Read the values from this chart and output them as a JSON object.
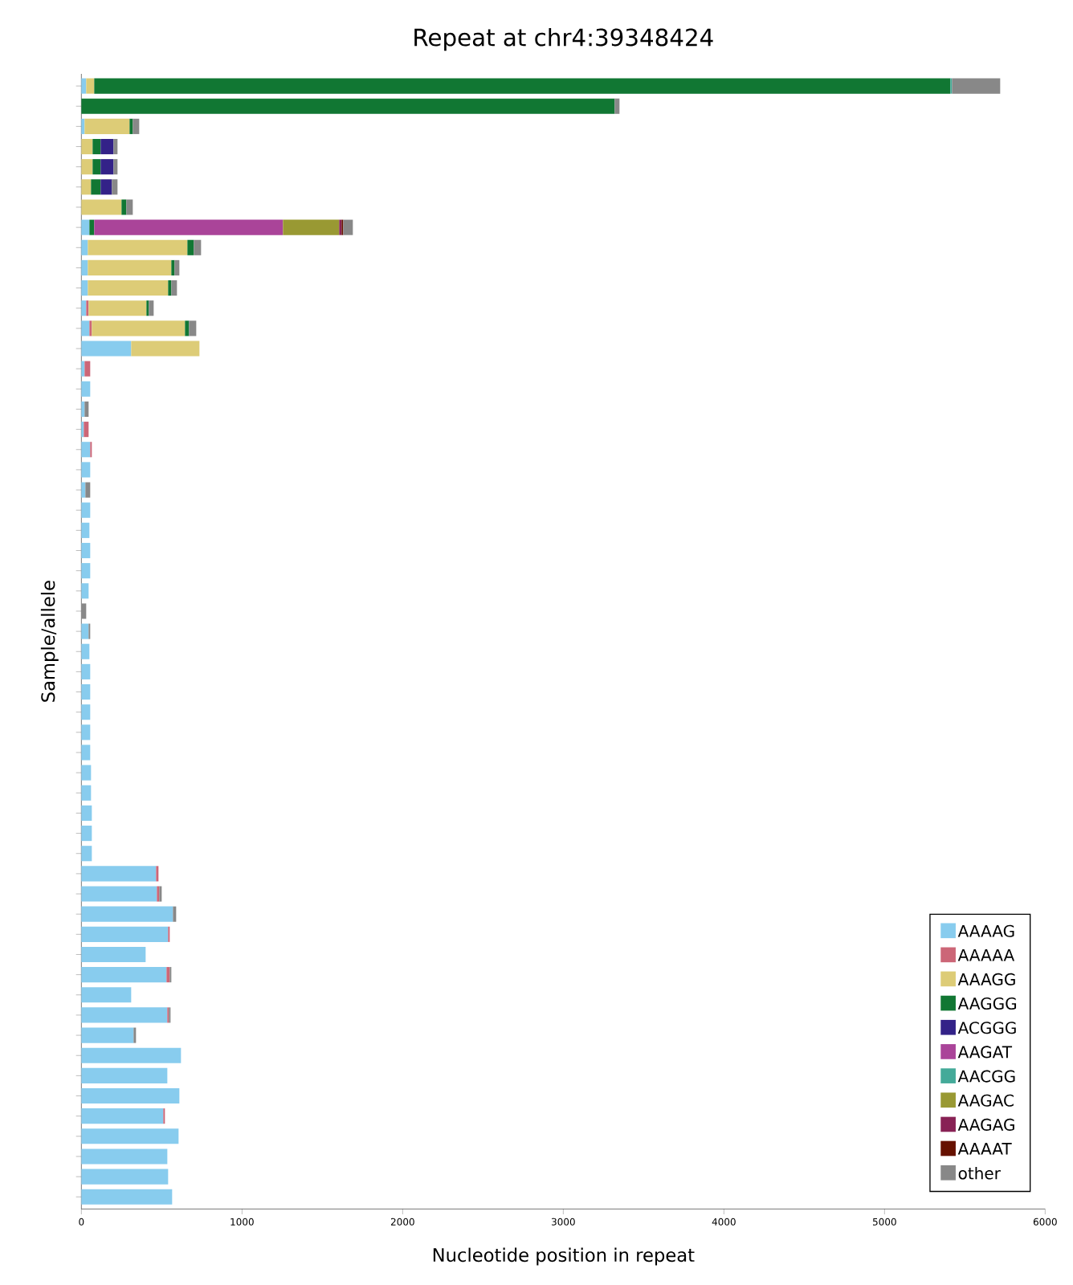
{
  "chart_data": {
    "type": "bar",
    "orientation": "horizontal",
    "stacked": true,
    "title": "Repeat at chr4:39348424",
    "xlabel": "Nucleotide position in repeat",
    "ylabel": "Sample/allele",
    "categories": [
      null,
      null,
      null,
      null,
      null,
      null,
      null,
      null,
      null,
      null,
      null,
      null,
      null,
      null,
      null,
      null,
      null,
      null,
      null,
      null,
      null,
      null,
      null,
      null,
      null,
      null,
      null,
      null,
      null,
      null,
      null,
      null,
      null,
      null,
      null,
      null,
      null,
      null,
      null,
      null,
      null,
      null,
      null,
      null,
      null,
      null,
      null,
      null,
      null,
      null,
      null,
      null,
      null,
      null,
      null,
      null
    ],
    "xlim": [
      0,
      6000
    ],
    "xticks": [
      0,
      1000,
      2000,
      3000,
      4000,
      5000,
      6000
    ],
    "tick_labels": "x",
    "legend": "bottom right",
    "series": [
      {
        "name": "AAAAG",
        "color": "#88ccee",
        "values": [
          30,
          null,
          20,
          null,
          null,
          null,
          null,
          50,
          40,
          40,
          40,
          30,
          50,
          310,
          20,
          55,
          20,
          15,
          55,
          55,
          25,
          55,
          50,
          55,
          55,
          45,
          null,
          45,
          50,
          55,
          55,
          55,
          55,
          55,
          60,
          60,
          65,
          65,
          65,
          465,
          470,
          570,
          540,
          400,
          530,
          310,
          535,
          325,
          620,
          535,
          610,
          510,
          605,
          535,
          540,
          565
        ]
      },
      {
        "name": "AAAAA",
        "color": "#cc6677",
        "values": [
          null,
          null,
          null,
          null,
          null,
          null,
          null,
          null,
          null,
          null,
          null,
          15,
          15,
          null,
          35,
          null,
          null,
          30,
          10,
          null,
          null,
          null,
          null,
          null,
          null,
          null,
          null,
          null,
          null,
          null,
          null,
          null,
          null,
          null,
          null,
          null,
          null,
          null,
          null,
          15,
          15,
          null,
          10,
          null,
          20,
          null,
          10,
          null,
          null,
          null,
          null,
          10,
          null,
          null,
          null,
          null
        ]
      },
      {
        "name": "AAAGG",
        "color": "#ddcc77",
        "values": [
          50,
          null,
          280,
          70,
          70,
          60,
          250,
          null,
          620,
          520,
          500,
          360,
          580,
          425,
          null,
          null,
          null,
          null,
          null,
          null,
          null,
          null,
          null,
          null,
          null,
          null,
          null,
          null,
          null,
          null,
          null,
          null,
          null,
          null,
          null,
          null,
          null,
          null,
          null,
          null,
          null,
          null,
          null,
          null,
          null,
          null,
          null,
          null,
          null,
          null,
          null,
          null,
          null,
          null,
          null,
          null
        ]
      },
      {
        "name": "AAGGG",
        "color": "#117733",
        "values": [
          5330,
          3320,
          20,
          50,
          50,
          60,
          30,
          30,
          40,
          20,
          20,
          15,
          25,
          null,
          null,
          null,
          null,
          null,
          null,
          null,
          null,
          null,
          null,
          null,
          null,
          null,
          null,
          null,
          null,
          null,
          null,
          null,
          null,
          null,
          null,
          null,
          null,
          null,
          null,
          null,
          null,
          null,
          null,
          null,
          null,
          null,
          null,
          null,
          null,
          null,
          null,
          null,
          null,
          null,
          null,
          null
        ]
      },
      {
        "name": "ACGGG",
        "color": "#332288",
        "values": [
          null,
          null,
          null,
          80,
          80,
          70,
          null,
          null,
          null,
          null,
          null,
          null,
          null,
          null,
          null,
          null,
          null,
          null,
          null,
          null,
          null,
          null,
          null,
          null,
          null,
          null,
          null,
          null,
          null,
          null,
          null,
          null,
          null,
          null,
          null,
          null,
          null,
          null,
          null,
          null,
          null,
          null,
          null,
          null,
          null,
          null,
          null,
          null,
          null,
          null,
          null,
          null,
          null,
          null,
          null,
          null
        ]
      },
      {
        "name": "AAGAT",
        "color": "#aa4499",
        "values": [
          null,
          null,
          null,
          null,
          null,
          null,
          null,
          1175,
          null,
          null,
          null,
          null,
          null,
          null,
          null,
          null,
          null,
          null,
          null,
          null,
          null,
          null,
          null,
          null,
          null,
          null,
          null,
          null,
          null,
          null,
          null,
          null,
          null,
          null,
          null,
          null,
          null,
          null,
          null,
          null,
          null,
          null,
          null,
          null,
          null,
          null,
          null,
          null,
          null,
          null,
          null,
          null,
          null,
          null,
          null,
          null
        ]
      },
      {
        "name": "AACGG",
        "color": "#44aa99",
        "values": [
          10,
          null,
          null,
          null,
          null,
          null,
          null,
          null,
          null,
          null,
          null,
          null,
          null,
          null,
          null,
          null,
          null,
          null,
          null,
          null,
          null,
          null,
          null,
          null,
          null,
          null,
          null,
          null,
          null,
          null,
          null,
          null,
          null,
          null,
          null,
          null,
          null,
          null,
          null,
          null,
          null,
          null,
          null,
          null,
          null,
          null,
          null,
          null,
          null,
          null,
          null,
          null,
          null,
          null,
          null,
          null
        ]
      },
      {
        "name": "AAGAC",
        "color": "#999933",
        "values": [
          null,
          null,
          null,
          null,
          null,
          null,
          null,
          350,
          null,
          null,
          null,
          null,
          null,
          null,
          null,
          null,
          null,
          null,
          null,
          null,
          null,
          null,
          null,
          null,
          null,
          null,
          null,
          null,
          null,
          null,
          null,
          null,
          null,
          null,
          null,
          null,
          null,
          null,
          null,
          null,
          null,
          null,
          null,
          null,
          null,
          null,
          null,
          null,
          null,
          null,
          null,
          null,
          null,
          null,
          null,
          null
        ]
      },
      {
        "name": "AAGAG",
        "color": "#882255",
        "values": [
          null,
          null,
          null,
          null,
          null,
          null,
          null,
          15,
          null,
          null,
          null,
          null,
          null,
          null,
          null,
          null,
          null,
          null,
          null,
          null,
          null,
          null,
          null,
          null,
          null,
          null,
          null,
          null,
          null,
          null,
          null,
          null,
          null,
          null,
          null,
          null,
          null,
          null,
          null,
          null,
          null,
          null,
          null,
          null,
          null,
          null,
          null,
          null,
          null,
          null,
          null,
          null,
          null,
          null,
          null,
          null
        ]
      },
      {
        "name": "AAAAT",
        "color": "#661100",
        "values": [
          null,
          null,
          null,
          null,
          null,
          null,
          null,
          10,
          null,
          null,
          null,
          null,
          null,
          null,
          null,
          null,
          null,
          null,
          null,
          null,
          null,
          null,
          null,
          null,
          null,
          null,
          null,
          null,
          null,
          null,
          null,
          null,
          null,
          null,
          null,
          null,
          null,
          null,
          null,
          null,
          null,
          null,
          null,
          null,
          null,
          null,
          null,
          null,
          null,
          null,
          null,
          null,
          null,
          null,
          null,
          null
        ]
      },
      {
        "name": "other",
        "color": "#888888",
        "values": [
          300,
          30,
          40,
          25,
          25,
          35,
          40,
          60,
          45,
          30,
          35,
          30,
          45,
          null,
          null,
          null,
          25,
          null,
          null,
          null,
          30,
          null,
          null,
          null,
          null,
          null,
          30,
          10,
          null,
          null,
          null,
          null,
          null,
          null,
          null,
          null,
          null,
          null,
          null,
          null,
          15,
          20,
          null,
          null,
          10,
          null,
          10,
          15,
          null,
          null,
          null,
          null,
          null,
          null,
          null,
          null
        ]
      }
    ]
  }
}
